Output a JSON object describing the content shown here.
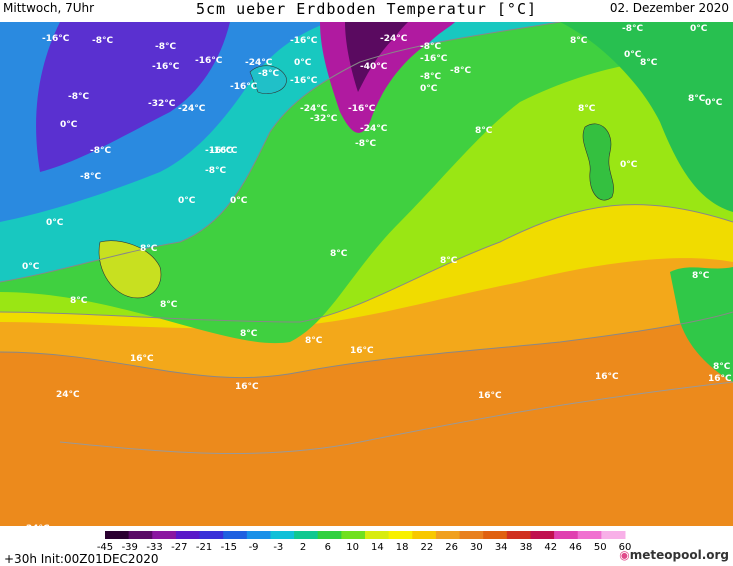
{
  "header": {
    "day_time": "Mittwoch, 7Uhr",
    "title": "5cm ueber Erdboden Temperatur [°C]",
    "date": "02. Dezember 2020"
  },
  "footer": {
    "run_info": "+30h Init:00Z01DEC2020",
    "logo_text": "meteopool",
    "logo_suffix": ".org"
  },
  "legend": {
    "ticks": [
      "-45",
      "-39",
      "-33",
      "-27",
      "-21",
      "-15",
      "-9",
      "-3",
      "2",
      "6",
      "10",
      "14",
      "18",
      "22",
      "26",
      "30",
      "34",
      "38",
      "42",
      "46",
      "50",
      "60"
    ],
    "colors": [
      "#2a0030",
      "#5a0a66",
      "#8a16a0",
      "#5a18c8",
      "#3a30d8",
      "#2060e0",
      "#1a90e8",
      "#10c0d8",
      "#10c890",
      "#30d040",
      "#70e020",
      "#d8ec10",
      "#f8f000",
      "#f8c800",
      "#f0a020",
      "#e88020",
      "#e06010",
      "#d03020",
      "#c01050",
      "#e040b0",
      "#f070d0",
      "#f8b0e8"
    ]
  },
  "labels": [
    {
      "text": "-16°C"
    },
    {
      "text": "-8°C"
    },
    {
      "text": "-8°C"
    },
    {
      "text": "-16°C"
    },
    {
      "text": "-16°C"
    },
    {
      "text": "-24°C"
    },
    {
      "text": "-8°C"
    },
    {
      "text": "-16°C"
    },
    {
      "text": "-24°C"
    },
    {
      "text": "-32°C"
    },
    {
      "text": "-16°C"
    },
    {
      "text": "-40°C"
    },
    {
      "text": "-8°C"
    },
    {
      "text": "0°C"
    },
    {
      "text": "-16°C"
    },
    {
      "text": "-24°C"
    },
    {
      "text": "-8°C"
    },
    {
      "text": "-16°C"
    },
    {
      "text": "-8°C"
    },
    {
      "text": "-24°C"
    },
    {
      "text": "-32°C"
    },
    {
      "text": "-24°C"
    },
    {
      "text": "-16°C"
    },
    {
      "text": "-8°C"
    },
    {
      "text": "0°C"
    },
    {
      "text": "-8°C"
    },
    {
      "text": "0°C"
    },
    {
      "text": "8°C"
    },
    {
      "text": "-16°C"
    },
    {
      "text": "-8°C"
    },
    {
      "text": "0°C"
    },
    {
      "text": "0°C"
    },
    {
      "text": "0°C"
    },
    {
      "text": "8°C"
    },
    {
      "text": "8°C"
    },
    {
      "text": "8°C"
    },
    {
      "text": "0°C"
    },
    {
      "text": "8°C"
    },
    {
      "text": "8°C"
    },
    {
      "text": "8°C"
    },
    {
      "text": "8°C"
    },
    {
      "text": "16°C"
    },
    {
      "text": "24°C"
    },
    {
      "text": "16°C"
    },
    {
      "text": "16°C"
    },
    {
      "text": "16°C"
    },
    {
      "text": "16°C"
    },
    {
      "text": "8°C"
    },
    {
      "text": "16°C"
    },
    {
      "text": "24°C"
    },
    {
      "text": "-8°C"
    },
    {
      "text": "0°C"
    },
    {
      "text": "8°C"
    },
    {
      "text": "0°C"
    },
    {
      "text": "8°C"
    },
    {
      "text": "0°C"
    },
    {
      "text": "8°C"
    },
    {
      "text": "8°C"
    },
    {
      "text": "0°C"
    },
    {
      "text": "-8°C"
    },
    {
      "text": "-8°C"
    },
    {
      "text": "-16°C"
    },
    {
      "text": "8°C"
    }
  ]
}
